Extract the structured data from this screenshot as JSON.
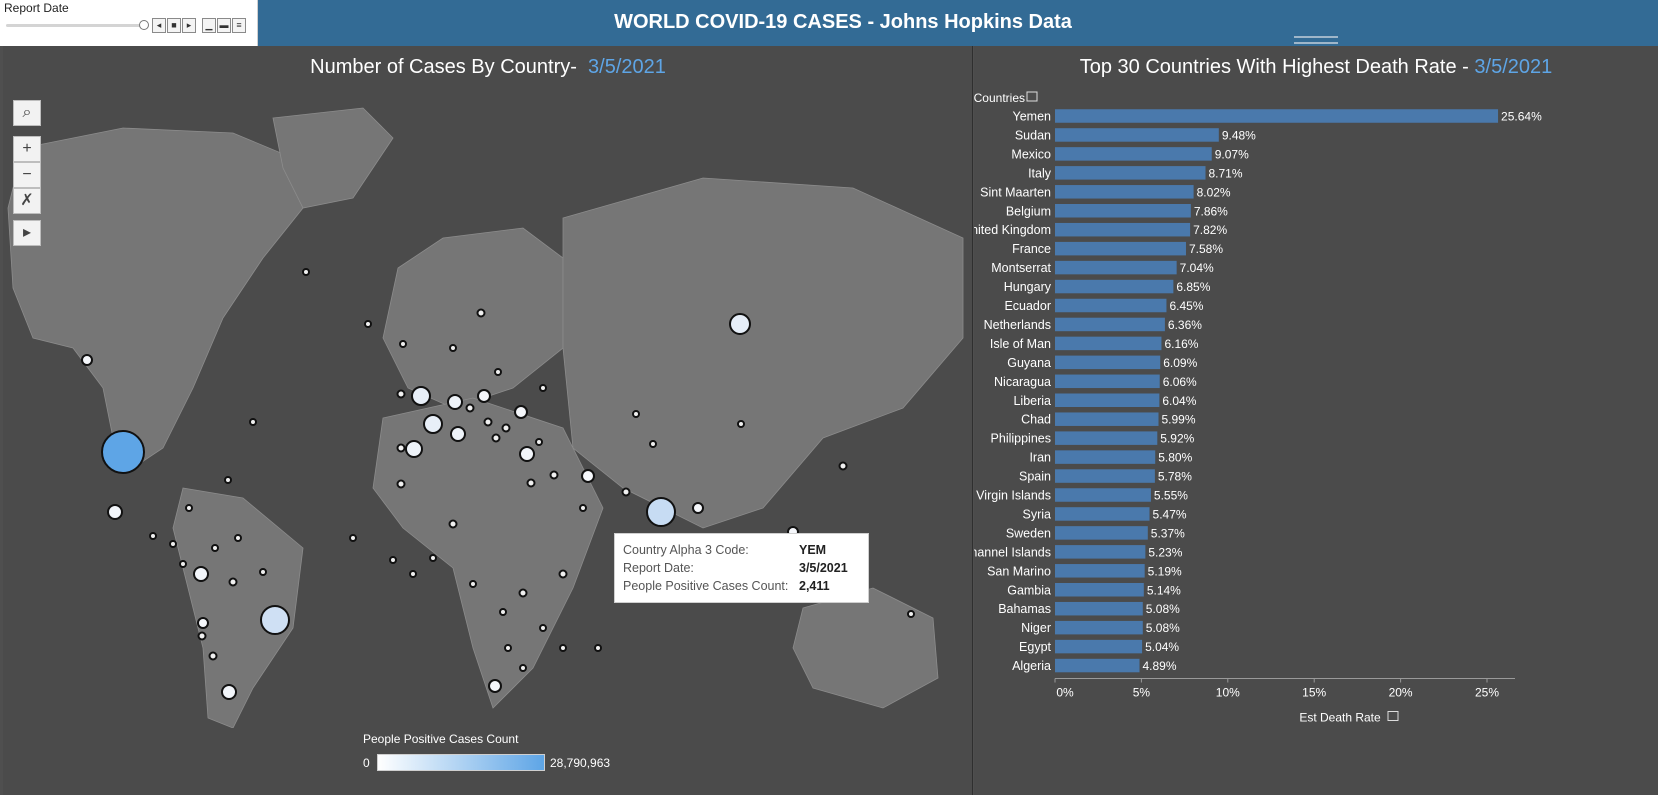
{
  "filter": {
    "label": "Report Date",
    "controls": [
      "◂",
      "■",
      "▸",
      "▁",
      "▬",
      "≡"
    ]
  },
  "header": {
    "title": "WORLD COVID-19 CASES - Johns Hopkins Data"
  },
  "map": {
    "title_prefix": "Number of Cases By Country-",
    "title_date": "3/5/2021",
    "tools": [
      "⌕",
      "+",
      "−",
      "✗",
      "▸"
    ],
    "legend": {
      "title": "People Positive Cases Count",
      "min": "0",
      "max": "28,790,963"
    },
    "tooltip": {
      "rows": [
        {
          "k": "Country Alpha 3 Code:",
          "v": "YEM"
        },
        {
          "k": "Report Date:",
          "v": "3/5/2021"
        },
        {
          "k": "People Positive Cases Count:",
          "v": "2,411"
        }
      ]
    },
    "colors": {
      "background": "#4b4b4b",
      "land": "#7a7a7a",
      "scale_low": "#ffffff",
      "scale_high": "#5ea5e6"
    }
  },
  "chart_data": {
    "type": "bar",
    "orientation": "horizontal",
    "title": "Top 30 Countries With Highest Death Rate  -",
    "title_date": "3/5/2021",
    "ylabel": "Countries",
    "xlabel": "Est Death Rate",
    "xlim": [
      0,
      26
    ],
    "xticks": [
      0,
      5,
      10,
      15,
      20,
      25
    ],
    "xtick_labels": [
      "0%",
      "5%",
      "10%",
      "15%",
      "20%",
      "25%"
    ],
    "bar_color": "#4a79ac",
    "categories": [
      "Yemen",
      "Sudan",
      "Mexico",
      "Italy",
      "Sint Maarten",
      "Belgium",
      "United Kingdom",
      "France",
      "Montserrat",
      "Hungary",
      "Ecuador",
      "Netherlands",
      "Isle of Man",
      "Guyana",
      "Nicaragua",
      "Liberia",
      "Chad",
      "Philippines",
      "Iran",
      "Spain",
      "British Virgin Islands",
      "Syria",
      "Sweden",
      "Channel Islands",
      "San Marino",
      "Gambia",
      "Bahamas",
      "Niger",
      "Egypt",
      "Algeria"
    ],
    "values": [
      25.64,
      9.48,
      9.07,
      8.71,
      8.02,
      7.86,
      7.82,
      7.58,
      7.04,
      6.85,
      6.45,
      6.36,
      6.16,
      6.09,
      6.06,
      6.04,
      5.99,
      5.92,
      5.8,
      5.78,
      5.55,
      5.47,
      5.37,
      5.23,
      5.19,
      5.14,
      5.08,
      5.08,
      5.04,
      4.89
    ],
    "value_labels": [
      "25.64%",
      "9.48%",
      "9.07%",
      "8.71%",
      "8.02%",
      "7.86%",
      "7.82%",
      "7.58%",
      "7.04%",
      "6.85%",
      "6.45%",
      "6.36%",
      "6.16%",
      "6.09%",
      "6.06%",
      "6.04%",
      "5.99%",
      "5.92%",
      "5.80%",
      "5.78%",
      "5.55%",
      "5.47%",
      "5.37%",
      "5.23%",
      "5.19%",
      "5.14%",
      "5.08%",
      "5.08%",
      "5.04%",
      "4.89%"
    ]
  }
}
